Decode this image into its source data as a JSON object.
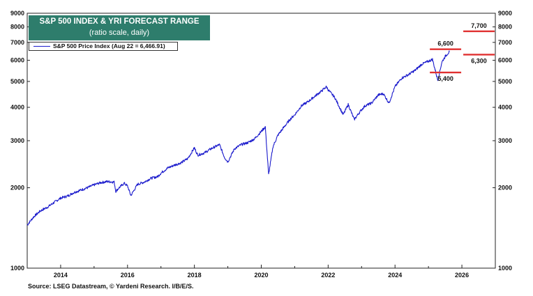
{
  "chart_data": {
    "type": "line",
    "title": "S&P 500 INDEX & YRI FORECAST RANGE",
    "subtitle": "(ratio scale, daily)",
    "scale": "log",
    "ylim": [
      1000,
      9000
    ],
    "xlim": [
      2013.0,
      2027.0
    ],
    "y_ticks": [
      1000,
      2000,
      3000,
      4000,
      5000,
      6000,
      7000,
      8000,
      9000
    ],
    "y_tick_labels": [
      "1000",
      "2000",
      "3000",
      "4000",
      "5000",
      "6000",
      "7000",
      "8000",
      "9000"
    ],
    "x_ticks": [
      2014,
      2016,
      2018,
      2020,
      2022,
      2024,
      2026
    ],
    "x_tick_labels": [
      "2014",
      "2016",
      "2018",
      "2020",
      "2022",
      "2024",
      "2026"
    ],
    "legend": {
      "placement": "top-left",
      "label": "S&P 500 Price Index (Aug 22 = 6,466.91)"
    },
    "colors": {
      "line": "#1a1acc",
      "forecast": "#e03030",
      "title_bg": "#2e7d6c"
    },
    "series": [
      {
        "name": "S&P 500 Price Index (Aug 22 = 6,466.91)",
        "x": [
          2013.0,
          2013.2,
          2013.4,
          2013.6,
          2013.8,
          2014.0,
          2014.2,
          2014.4,
          2014.6,
          2014.8,
          2015.0,
          2015.2,
          2015.4,
          2015.6,
          2015.65,
          2015.75,
          2015.9,
          2016.0,
          2016.1,
          2016.3,
          2016.5,
          2016.7,
          2016.9,
          2017.0,
          2017.2,
          2017.4,
          2017.6,
          2017.8,
          2018.0,
          2018.1,
          2018.3,
          2018.5,
          2018.75,
          2018.9,
          2019.0,
          2019.2,
          2019.4,
          2019.6,
          2019.8,
          2020.0,
          2020.12,
          2020.22,
          2020.35,
          2020.5,
          2020.7,
          2020.9,
          2021.0,
          2021.2,
          2021.4,
          2021.6,
          2021.8,
          2021.95,
          2022.0,
          2022.2,
          2022.45,
          2022.6,
          2022.78,
          2022.95,
          2023.1,
          2023.3,
          2023.5,
          2023.65,
          2023.82,
          2024.0,
          2024.2,
          2024.4,
          2024.6,
          2024.8,
          2025.0,
          2025.12,
          2025.28,
          2025.4,
          2025.5,
          2025.63
        ],
        "values": [
          1450,
          1560,
          1640,
          1690,
          1760,
          1830,
          1860,
          1920,
          1960,
          2000,
          2050,
          2090,
          2110,
          2100,
          1940,
          2000,
          2080,
          2030,
          1870,
          2060,
          2100,
          2170,
          2200,
          2270,
          2370,
          2430,
          2480,
          2570,
          2820,
          2650,
          2700,
          2800,
          2900,
          2600,
          2500,
          2800,
          2900,
          2950,
          3050,
          3250,
          3380,
          2240,
          2850,
          3150,
          3400,
          3650,
          3750,
          4050,
          4200,
          4400,
          4600,
          4780,
          4650,
          4350,
          3750,
          4100,
          3600,
          3850,
          4050,
          4150,
          4450,
          4500,
          4150,
          4780,
          5150,
          5300,
          5500,
          5800,
          5950,
          6050,
          5050,
          5900,
          6200,
          6470
        ]
      }
    ],
    "forecasts": [
      {
        "label": "6,600",
        "value": 6600,
        "x_start": 2025.0,
        "x_end": 2026.0
      },
      {
        "label": "5,400",
        "value": 5400,
        "x_start": 2025.0,
        "x_end": 2026.0
      },
      {
        "label": "7,700",
        "value": 7700,
        "x_start": 2026.0,
        "x_end": 2027.0
      },
      {
        "label": "6,300",
        "value": 6300,
        "x_start": 2026.0,
        "x_end": 2027.0
      }
    ]
  },
  "source": "Source: LSEG Datastream, © Yardeni Research. I/B/E/S."
}
